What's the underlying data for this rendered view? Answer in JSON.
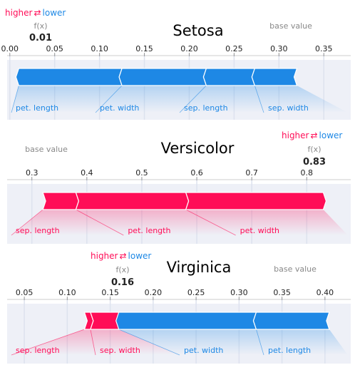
{
  "legend": {
    "higher": "higher",
    "arrow": "⇄",
    "lower": "lower"
  },
  "colors": {
    "positive": "#ff0d57",
    "negative": "#1e88e5",
    "grid": "#dde2ee",
    "band": "#eef0f7",
    "fade_pos": "#ffc3d5",
    "fade_neg": "#d1e6fa"
  },
  "chart_data": [
    {
      "type": "force",
      "title": "Setosa",
      "base_value_label": "base value",
      "fx_label": "f(x)",
      "fx_value": "0.01",
      "fx": 0.01,
      "base_value": 0.32,
      "xlim": [
        -0.003,
        0.38
      ],
      "ticks": [
        "0.00",
        "0.05",
        "0.10",
        "0.15",
        "0.20",
        "0.25",
        "0.30",
        "0.35"
      ],
      "tick_values": [
        0.0,
        0.05,
        0.1,
        0.15,
        0.2,
        0.25,
        0.3,
        0.35
      ],
      "segments": [
        {
          "feature": "pet. length",
          "direction": "negative",
          "from": 0.01,
          "to": 0.125
        },
        {
          "feature": "pet. width",
          "direction": "negative",
          "from": 0.125,
          "to": 0.219
        },
        {
          "feature": "sep. length",
          "direction": "negative",
          "from": 0.219,
          "to": 0.273
        },
        {
          "feature": "sep. width",
          "direction": "negative",
          "from": 0.273,
          "to": 0.32
        }
      ]
    },
    {
      "type": "force",
      "title": "Versicolor",
      "base_value_label": "base value",
      "fx_label": "f(x)",
      "fx_value": "0.83",
      "fx": 0.83,
      "base_value": 0.32,
      "xlim": [
        0.255,
        0.88
      ],
      "ticks": [
        "0.3",
        "0.4",
        "0.5",
        "0.6",
        "0.7",
        "0.8"
      ],
      "tick_values": [
        0.3,
        0.4,
        0.5,
        0.6,
        0.7,
        0.8
      ],
      "segments": [
        {
          "feature": "sep. length",
          "direction": "positive",
          "from": 0.32,
          "to": 0.38
        },
        {
          "feature": "pet. length",
          "direction": "positive",
          "from": 0.38,
          "to": 0.58
        },
        {
          "feature": "pet. width",
          "direction": "positive",
          "from": 0.58,
          "to": 0.83
        }
      ]
    },
    {
      "type": "force",
      "title": "Virginica",
      "base_value_label": "base value",
      "fx_label": "f(x)",
      "fx_value": "0.16",
      "fx": 0.16,
      "base_value": 0.405,
      "xlim": [
        0.03,
        0.43
      ],
      "ticks": [
        "0.05",
        "0.10",
        "0.15",
        "0.20",
        "0.25",
        "0.30",
        "0.35",
        "0.40"
      ],
      "tick_values": [
        0.05,
        0.1,
        0.15,
        0.2,
        0.25,
        0.3,
        0.35,
        0.4
      ],
      "segments": [
        {
          "feature": "sep. length",
          "direction": "positive",
          "from": 0.12,
          "to": 0.127
        },
        {
          "feature": "sep. width",
          "direction": "positive",
          "from": 0.127,
          "to": 0.16
        },
        {
          "feature": "pet. width",
          "direction": "negative",
          "from": 0.16,
          "to": 0.32
        },
        {
          "feature": "pet. length",
          "direction": "negative",
          "from": 0.32,
          "to": 0.405
        }
      ]
    }
  ]
}
